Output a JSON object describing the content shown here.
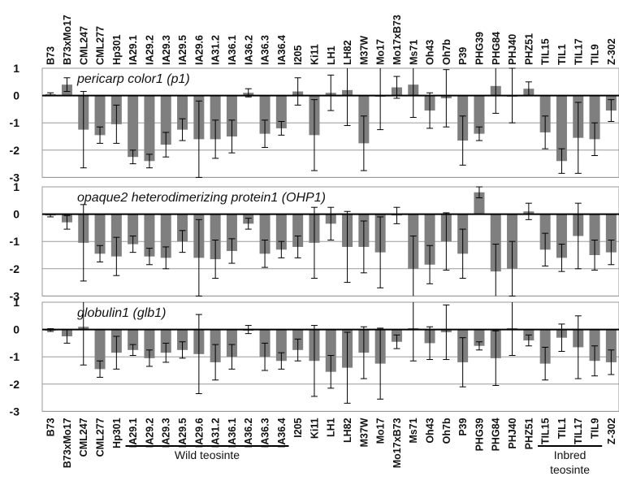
{
  "chart_data": {
    "type": "bar",
    "categories": [
      "B73",
      "B73xMo17",
      "CML247",
      "CML277",
      "Hp301",
      "IA29.1",
      "IA29.2",
      "IA29.3",
      "IA29.5",
      "IA29.6",
      "IA31.2",
      "IA36.1",
      "IA36.2",
      "IA36.3",
      "IA36.4",
      "I205",
      "Ki11",
      "LH1",
      "LH82",
      "M37W",
      "Mo17",
      "Mo17xB73",
      "Ms71",
      "Oh43",
      "Oh7b",
      "P39",
      "PHG39",
      "PHG84",
      "PHJ40",
      "PHZ51",
      "TIL15",
      "TIL1",
      "TIL17",
      "TIL9",
      "Z-302"
    ],
    "y_ticks": [
      "1",
      "0",
      "-1",
      "-2",
      "-3"
    ],
    "ylim": [
      -3,
      1
    ],
    "bar_color": "#7f7f7f",
    "panels": [
      {
        "title": "pericarp color1 (p1)",
        "values": [
          0.05,
          0.4,
          -1.25,
          -1.45,
          -1.05,
          -2.25,
          -2.4,
          -1.8,
          -1.25,
          -1.6,
          -1.6,
          -1.5,
          0.1,
          -1.4,
          -1.2,
          0.15,
          -1.45,
          0.1,
          0.2,
          -1.75,
          0.0,
          0.3,
          0.4,
          -0.55,
          -0.1,
          -1.65,
          -1.4,
          0.35,
          0.0,
          0.25,
          -1.35,
          -2.4,
          -1.55,
          -1.6,
          -0.55
        ],
        "errors": [
          0.05,
          0.25,
          1.4,
          0.3,
          0.7,
          0.25,
          0.25,
          0.45,
          0.4,
          1.4,
          0.7,
          0.6,
          0.15,
          0.5,
          0.25,
          0.5,
          1.3,
          0.65,
          1.3,
          1.0,
          1.25,
          0.4,
          1.2,
          0.65,
          1.05,
          0.9,
          0.25,
          1.0,
          1.0,
          0.25,
          0.6,
          0.45,
          1.3,
          0.6,
          0.4
        ]
      },
      {
        "title": "opaque2 heterodimerizing protein1 (OHP1)",
        "values": [
          -0.05,
          -0.3,
          -1.05,
          -1.45,
          -1.55,
          -1.1,
          -1.55,
          -1.6,
          -1.0,
          -1.6,
          -1.65,
          -1.35,
          -0.35,
          -1.45,
          -1.3,
          -1.2,
          -1.05,
          -0.35,
          -1.2,
          -1.2,
          -1.4,
          -0.05,
          -2.0,
          -1.85,
          -1.0,
          -1.45,
          0.8,
          -2.1,
          -2.0,
          0.1,
          -1.3,
          -1.6,
          -0.8,
          -1.5,
          -1.4
        ],
        "errors": [
          0.05,
          0.25,
          1.4,
          0.3,
          0.7,
          0.3,
          0.3,
          0.4,
          0.4,
          1.4,
          0.7,
          0.45,
          0.2,
          0.5,
          0.3,
          0.4,
          1.3,
          0.6,
          1.3,
          0.95,
          1.3,
          0.3,
          1.2,
          0.7,
          1.05,
          0.9,
          0.2,
          1.0,
          1.0,
          0.3,
          0.6,
          0.5,
          1.2,
          0.55,
          0.45
        ]
      },
      {
        "title": "globulin1 (glb1)",
        "values": [
          -0.02,
          -0.25,
          0.1,
          -1.45,
          -0.85,
          -0.75,
          -1.05,
          -0.85,
          -0.75,
          -0.9,
          -1.2,
          -1.0,
          0.0,
          -1.0,
          -1.15,
          -0.75,
          -1.15,
          -1.55,
          -1.4,
          -0.85,
          -1.25,
          -0.45,
          0.05,
          -0.5,
          -0.1,
          -1.2,
          -0.6,
          -1.05,
          0.05,
          -0.4,
          -1.25,
          -0.3,
          -0.65,
          -1.15,
          -1.2
        ],
        "errors": [
          0.05,
          0.25,
          1.4,
          0.3,
          0.6,
          0.2,
          0.3,
          0.35,
          0.3,
          1.45,
          0.65,
          0.45,
          0.15,
          0.5,
          0.3,
          0.4,
          1.3,
          0.6,
          1.3,
          0.95,
          1.3,
          0.25,
          1.2,
          0.6,
          1.0,
          0.9,
          0.15,
          1.0,
          1.0,
          0.2,
          0.6,
          0.5,
          1.15,
          0.55,
          0.45
        ]
      }
    ],
    "groups": [
      {
        "label": "Wild teosinte",
        "from": "IA29.1",
        "to": "IA36.4"
      },
      {
        "label": "Inbred teosinte",
        "from": "TIL15",
        "to": "TIL9"
      }
    ]
  }
}
